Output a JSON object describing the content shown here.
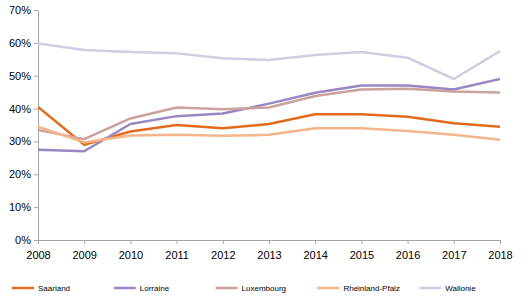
{
  "chart_data": {
    "type": "line",
    "x": [
      2008,
      2009,
      2010,
      2011,
      2012,
      2013,
      2014,
      2015,
      2016,
      2017,
      2018
    ],
    "xlim": [
      2008,
      2018
    ],
    "xticks": [
      2008,
      2009,
      2010,
      2011,
      2012,
      2013,
      2014,
      2015,
      2016,
      2017,
      2018
    ],
    "ylim": [
      0,
      70
    ],
    "yticks": [
      {
        "value": 0,
        "label": "0%"
      },
      {
        "value": 10,
        "label": "10%"
      },
      {
        "value": 20,
        "label": "20%"
      },
      {
        "value": 30,
        "label": "30%"
      },
      {
        "value": 40,
        "label": "40%"
      },
      {
        "value": 50,
        "label": "50%"
      },
      {
        "value": 60,
        "label": "60%"
      },
      {
        "value": 70,
        "label": "70%"
      }
    ],
    "grid": false,
    "legend": "bottom",
    "series": [
      {
        "name": "Saarland",
        "color": "#e36c1c",
        "values": [
          40.5,
          29,
          33,
          35,
          34,
          35.3,
          38.3,
          38.3,
          37.5,
          35.5,
          34.5
        ]
      },
      {
        "name": "Lorraine",
        "color": "#9a86c2",
        "values": [
          27.5,
          27,
          35.3,
          37.7,
          38.5,
          41.5,
          44.8,
          47,
          47,
          45.8,
          49
        ]
      },
      {
        "name": "Luxembourg",
        "color": "#c9a29c",
        "values": [
          33.5,
          30.7,
          37,
          40.3,
          39.8,
          40.3,
          43.8,
          45.8,
          46,
          45.2,
          44.9
        ]
      },
      {
        "name": "Rheinland-Pfalz",
        "color": "#f5b489",
        "values": [
          34.5,
          29.7,
          31.8,
          32,
          31.7,
          32,
          34,
          34,
          33.2,
          32,
          30.5
        ]
      },
      {
        "name": "Wallonie",
        "color": "#d3cbe2",
        "values": [
          59.8,
          57.8,
          57.2,
          56.8,
          55.3,
          54.8,
          56.3,
          57.2,
          55.5,
          49,
          57.5
        ]
      }
    ]
  }
}
